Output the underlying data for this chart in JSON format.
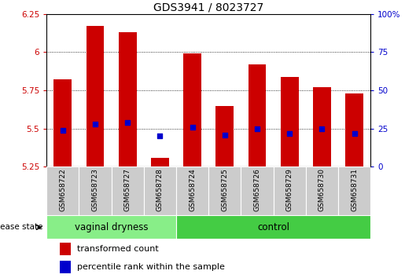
{
  "title": "GDS3941 / 8023727",
  "samples": [
    "GSM658722",
    "GSM658723",
    "GSM658727",
    "GSM658728",
    "GSM658724",
    "GSM658725",
    "GSM658726",
    "GSM658729",
    "GSM658730",
    "GSM658731"
  ],
  "bar_values": [
    5.82,
    6.17,
    6.13,
    5.31,
    5.99,
    5.65,
    5.92,
    5.84,
    5.77,
    5.73
  ],
  "dot_values": [
    5.49,
    5.53,
    5.54,
    5.45,
    5.51,
    5.46,
    5.5,
    5.47,
    5.5,
    5.47
  ],
  "bar_color": "#cc0000",
  "dot_color": "#0000cc",
  "ylim": [
    5.25,
    6.25
  ],
  "yticks_left": [
    5.25,
    5.5,
    5.75,
    6.0,
    6.25
  ],
  "yticks_right": [
    0,
    25,
    50,
    75,
    100
  ],
  "ytick_labels_left": [
    "5.25",
    "5.5",
    "5.75",
    "6",
    "6.25"
  ],
  "ytick_labels_right": [
    "0",
    "25",
    "50",
    "75",
    "100%"
  ],
  "groups": [
    {
      "label": "vaginal dryness",
      "start": 0,
      "end": 4,
      "color": "#88ee88"
    },
    {
      "label": "control",
      "start": 4,
      "end": 10,
      "color": "#44cc44"
    }
  ],
  "disease_state_label": "disease state",
  "legend_bar_label": "transformed count",
  "legend_dot_label": "percentile rank within the sample",
  "sample_bg_color": "#cccccc",
  "bar_width": 0.55,
  "title_fontsize": 10,
  "tick_fontsize": 7.5,
  "sample_fontsize": 6.5,
  "group_fontsize": 8.5,
  "legend_fontsize": 8
}
